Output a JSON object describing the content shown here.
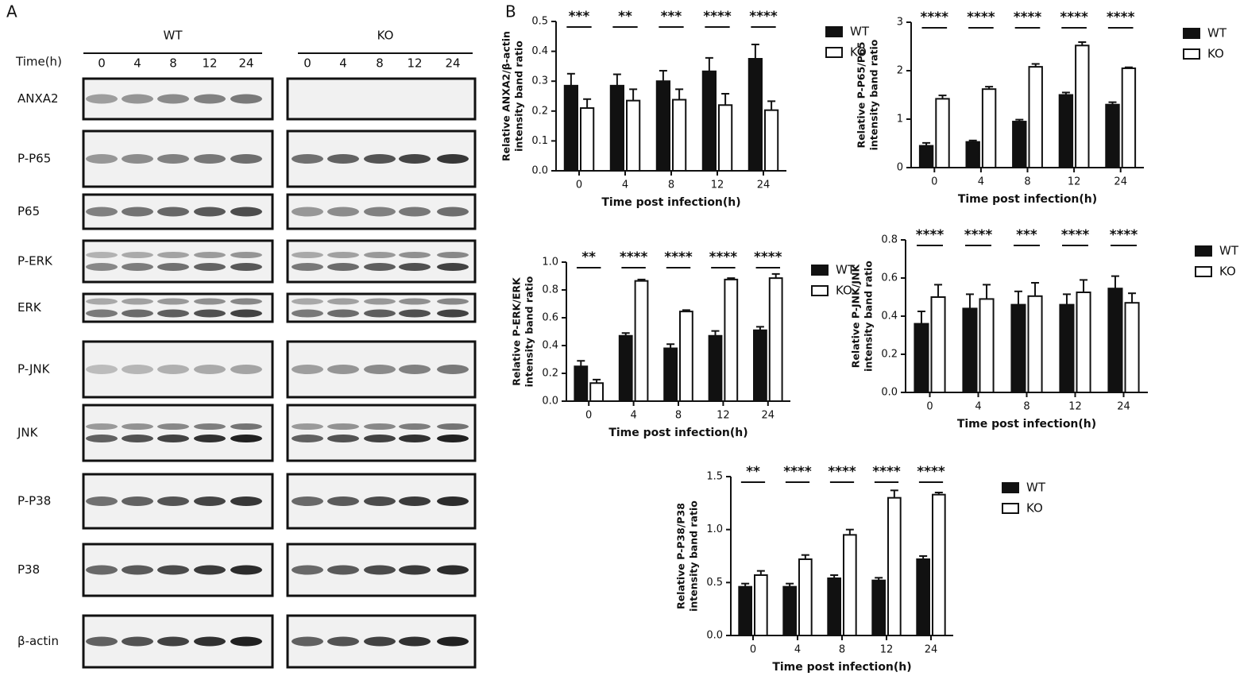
{
  "panel_a": {
    "label": "A",
    "groups": [
      "WT",
      "KO"
    ],
    "time_label": "Time(h)",
    "times": [
      0,
      4,
      8,
      12,
      24
    ],
    "proteins": [
      "ANXA2",
      "P-P65",
      "P65",
      "P-ERK",
      "ERK",
      "P-JNK",
      "JNK",
      "P-P38",
      "P38",
      "β-actin"
    ]
  },
  "panel_b_label": "B",
  "chart_data": [
    {
      "type": "bar",
      "ylabel": [
        "Relative ANXA2/β-actin",
        "intensity band ratio"
      ],
      "xlabel": "Time post infection(h)",
      "categories": [
        "0",
        "4",
        "8",
        "12",
        "24"
      ],
      "series": [
        {
          "name": "WT",
          "color": "#111111",
          "values": [
            0.285,
            0.285,
            0.3,
            0.333,
            0.375
          ],
          "errors": [
            0.04,
            0.038,
            0.035,
            0.045,
            0.048
          ]
        },
        {
          "name": "KO",
          "color": "#ffffff",
          "values": [
            0.21,
            0.235,
            0.238,
            0.22,
            0.203
          ],
          "errors": [
            0.03,
            0.038,
            0.035,
            0.038,
            0.03
          ]
        }
      ],
      "significance": [
        "***",
        "**",
        "***",
        "****",
        "****"
      ],
      "ylim": [
        0,
        0.5
      ],
      "yticks": [
        {
          "value": 0,
          "label": "0.0"
        },
        0.1,
        0.2,
        0.3,
        0.4,
        0.5
      ]
    },
    {
      "type": "bar",
      "ylabel": [
        "Relative P-P65/P65",
        "intensity band ratio"
      ],
      "xlabel": "Time post infection(h)",
      "categories": [
        "0",
        "4",
        "8",
        "12",
        "24"
      ],
      "series": [
        {
          "name": "WT",
          "color": "#111111",
          "values": [
            0.45,
            0.53,
            0.95,
            1.5,
            1.3
          ],
          "errors": [
            0.06,
            0.03,
            0.04,
            0.05,
            0.05
          ]
        },
        {
          "name": "KO",
          "color": "#ffffff",
          "values": [
            1.42,
            1.62,
            2.08,
            2.52,
            2.05
          ],
          "errors": [
            0.07,
            0.05,
            0.06,
            0.07,
            0.02
          ]
        }
      ],
      "significance": [
        "****",
        "****",
        "****",
        "****",
        "****"
      ],
      "ylim": [
        0,
        3
      ],
      "yticks": [
        0,
        1,
        2,
        3
      ]
    },
    {
      "type": "bar",
      "ylabel": [
        "Relative P-ERK/ERK",
        "intensity band ratio"
      ],
      "xlabel": "Time post infection(h)",
      "categories": [
        "0",
        "4",
        "8",
        "12",
        "24"
      ],
      "series": [
        {
          "name": "WT",
          "color": "#111111",
          "values": [
            0.25,
            0.47,
            0.38,
            0.47,
            0.51
          ],
          "errors": [
            0.04,
            0.02,
            0.03,
            0.035,
            0.025
          ]
        },
        {
          "name": "KO",
          "color": "#ffffff",
          "values": [
            0.13,
            0.865,
            0.645,
            0.875,
            0.885
          ],
          "errors": [
            0.025,
            0.01,
            0.01,
            0.01,
            0.03
          ]
        }
      ],
      "significance": [
        "**",
        "****",
        "****",
        "****",
        "****"
      ],
      "ylim": [
        0,
        1
      ],
      "yticks": [
        {
          "value": 0,
          "label": "0.0"
        },
        0.2,
        0.4,
        0.6,
        0.8,
        {
          "value": 1,
          "label": "1.0"
        }
      ]
    },
    {
      "type": "bar",
      "ylabel": [
        "Relative P-JNK/JNK",
        "intensity band ratio"
      ],
      "xlabel": "Time post infection(h)",
      "categories": [
        "0",
        "4",
        "8",
        "12",
        "24"
      ],
      "series": [
        {
          "name": "WT",
          "color": "#111111",
          "values": [
            0.36,
            0.44,
            0.46,
            0.46,
            0.545
          ],
          "errors": [
            0.065,
            0.075,
            0.07,
            0.055,
            0.065
          ]
        },
        {
          "name": "KO",
          "color": "#ffffff",
          "values": [
            0.5,
            0.49,
            0.505,
            0.525,
            0.47
          ],
          "errors": [
            0.065,
            0.075,
            0.07,
            0.065,
            0.05
          ]
        }
      ],
      "significance": [
        "****",
        "****",
        "***",
        "****",
        "****"
      ],
      "ylim": [
        0,
        0.8
      ],
      "yticks": [
        {
          "value": 0,
          "label": "0.0"
        },
        0.2,
        0.4,
        0.6,
        0.8
      ]
    },
    {
      "type": "bar",
      "ylabel": [
        "Relative P-P38/P38",
        "intensity band ratio"
      ],
      "xlabel": "Time post infection(h)",
      "categories": [
        "0",
        "4",
        "8",
        "12",
        "24"
      ],
      "series": [
        {
          "name": "WT",
          "color": "#111111",
          "values": [
            0.46,
            0.46,
            0.54,
            0.52,
            0.72
          ],
          "errors": [
            0.03,
            0.03,
            0.03,
            0.025,
            0.03
          ]
        },
        {
          "name": "KO",
          "color": "#ffffff",
          "values": [
            0.57,
            0.72,
            0.95,
            1.3,
            1.33
          ],
          "errors": [
            0.04,
            0.04,
            0.05,
            0.07,
            0.02
          ]
        }
      ],
      "significance": [
        "**",
        "****",
        "****",
        "****",
        "****"
      ],
      "ylim": [
        0,
        1.5
      ],
      "yticks": [
        {
          "value": 0,
          "label": "0.0"
        },
        0.5,
        {
          "value": 1,
          "label": "1.0"
        },
        1.5
      ]
    }
  ]
}
